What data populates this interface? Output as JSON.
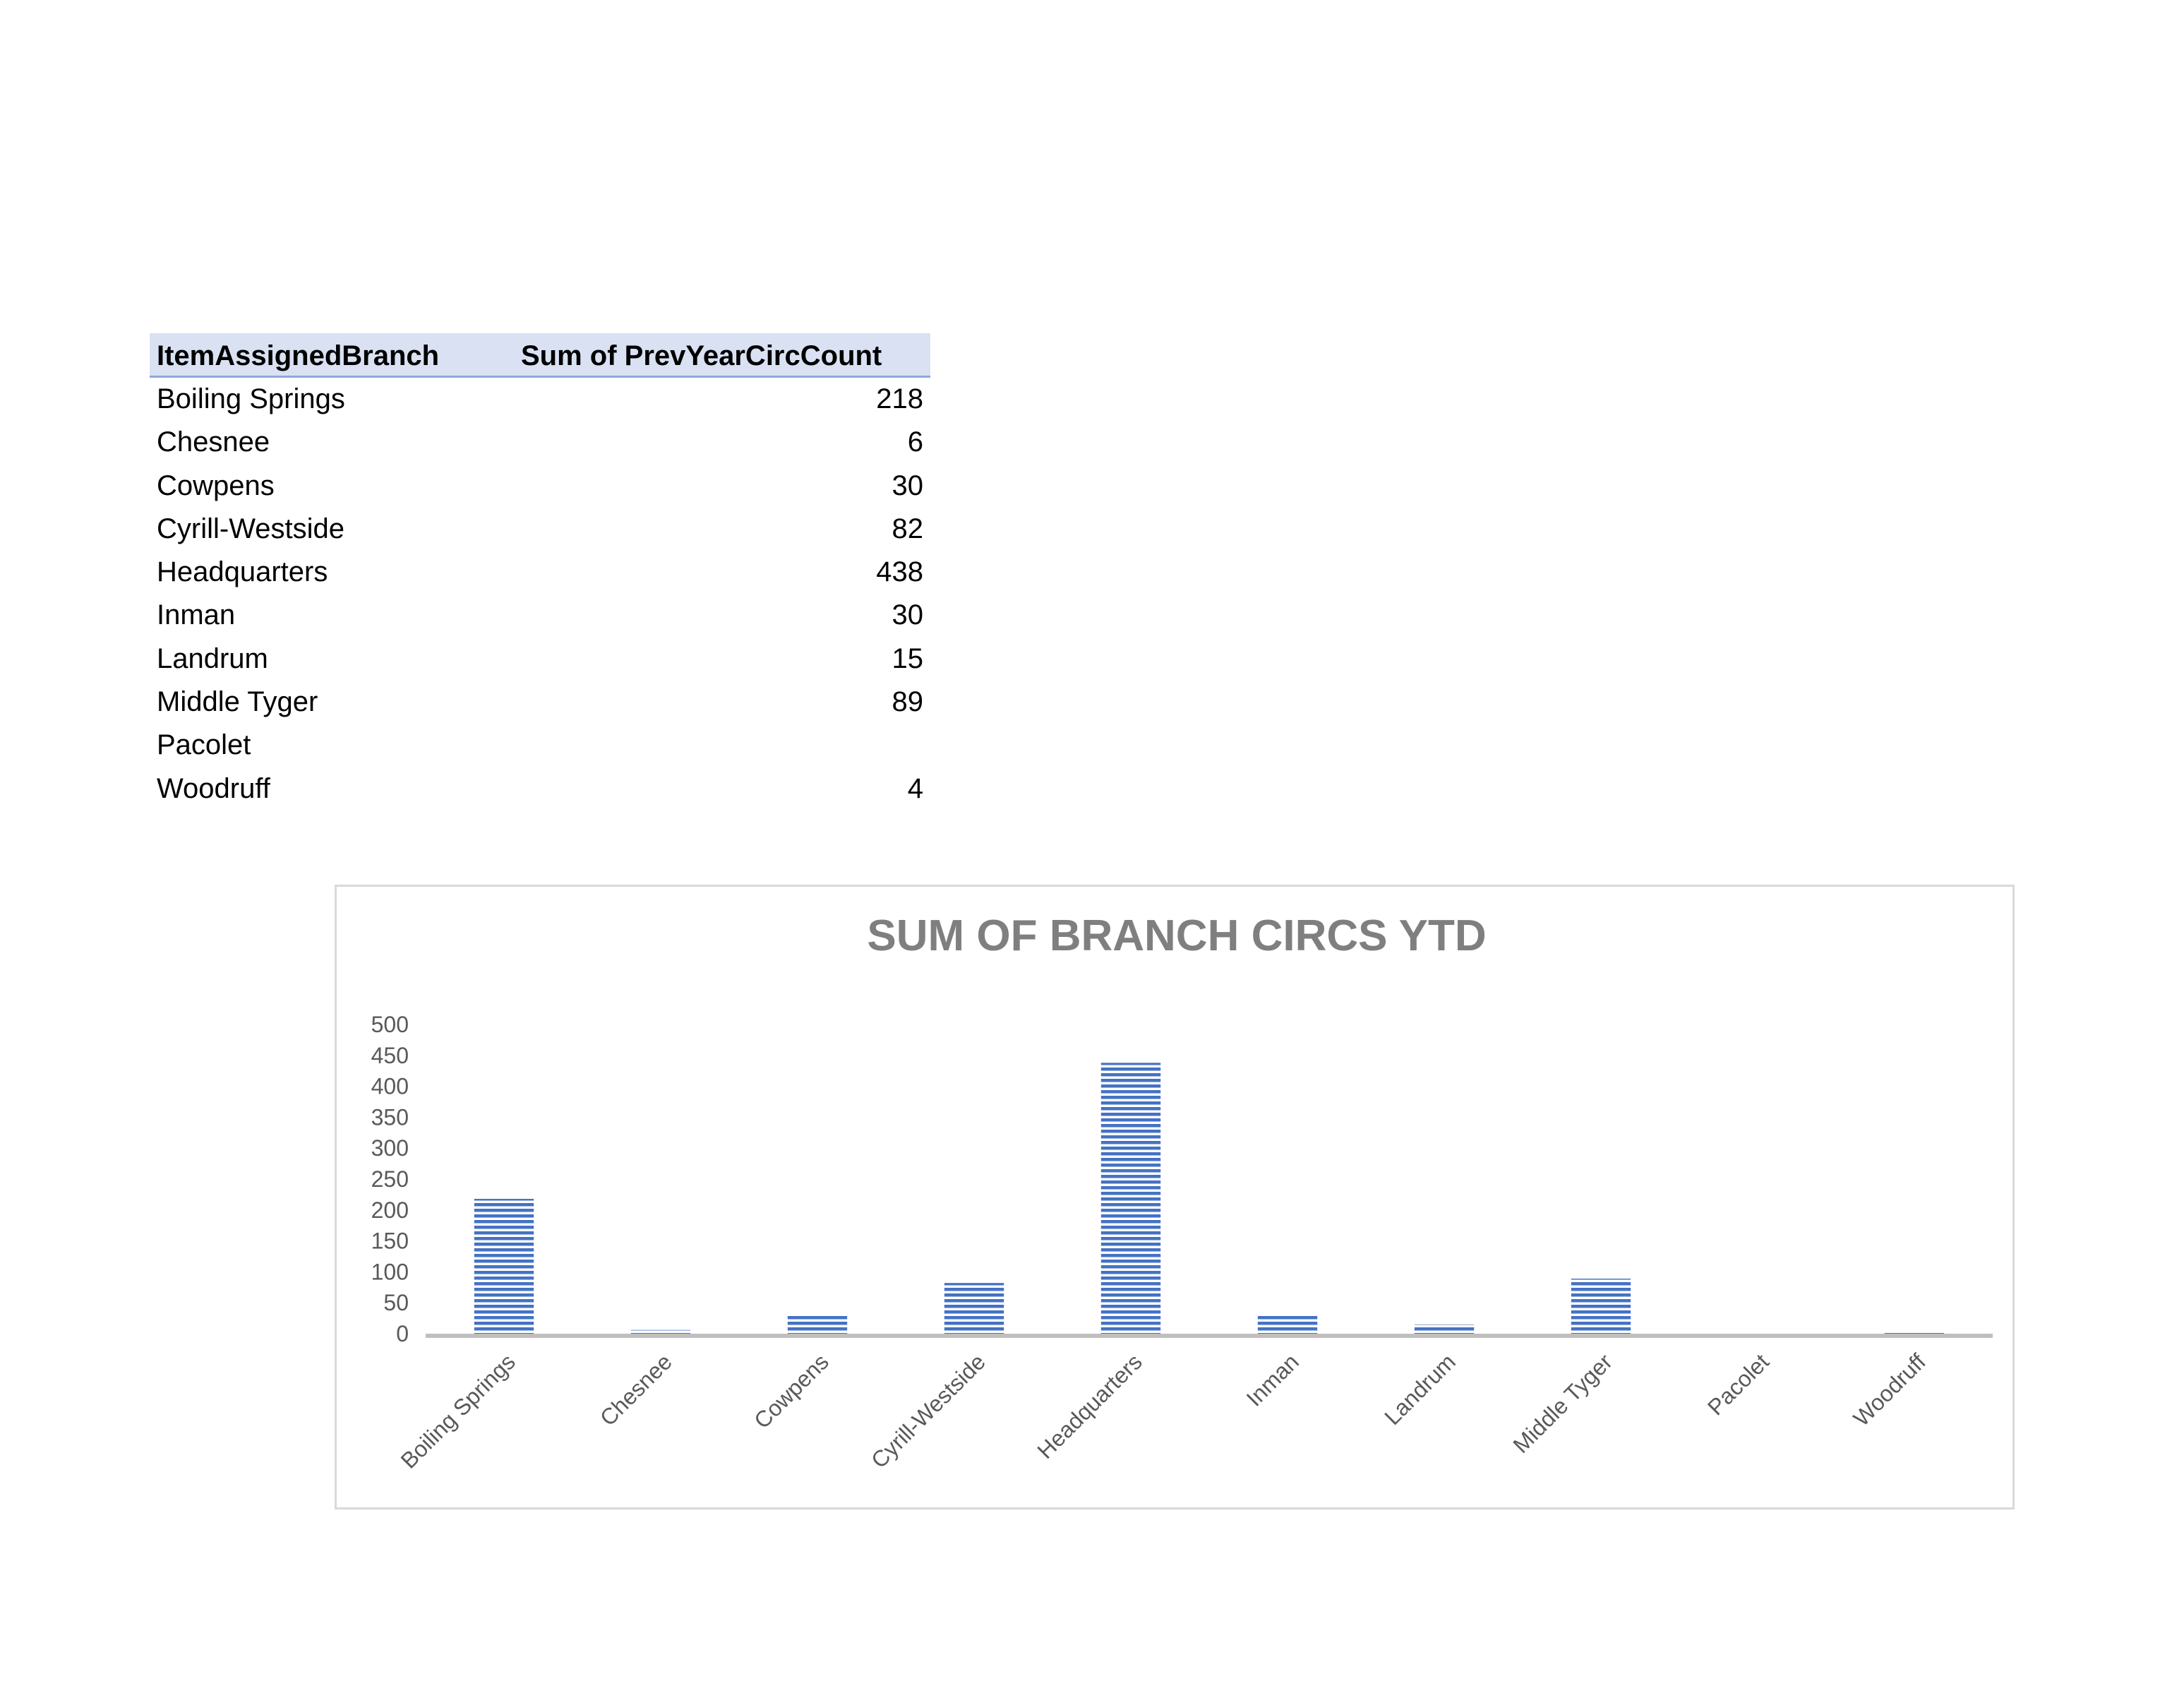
{
  "table": {
    "headers": [
      "ItemAssignedBranch",
      "Sum of PrevYearCircCount"
    ],
    "rows": [
      {
        "branch": "Boiling Springs",
        "value": "218"
      },
      {
        "branch": "Chesnee",
        "value": "6"
      },
      {
        "branch": "Cowpens",
        "value": "30"
      },
      {
        "branch": "Cyrill-Westside",
        "value": "82"
      },
      {
        "branch": "Headquarters",
        "value": "438"
      },
      {
        "branch": "Inman",
        "value": "30"
      },
      {
        "branch": "Landrum",
        "value": "15"
      },
      {
        "branch": "Middle Tyger",
        "value": "89"
      },
      {
        "branch": "Pacolet",
        "value": ""
      },
      {
        "branch": "Woodruff",
        "value": "4"
      }
    ]
  },
  "chart_data": {
    "type": "bar",
    "title": "SUM OF BRANCH CIRCS YTD",
    "categories": [
      "Boiling Springs",
      "Chesnee",
      "Cowpens",
      "Cyrill-Westside",
      "Headquarters",
      "Inman",
      "Landrum",
      "Middle Tyger",
      "Pacolet",
      "Woodruff"
    ],
    "values": [
      218,
      6,
      30,
      82,
      438,
      30,
      15,
      89,
      0,
      4
    ],
    "ylim": [
      0,
      500
    ],
    "yticks": [
      0,
      50,
      100,
      150,
      200,
      250,
      300,
      350,
      400,
      450,
      500
    ],
    "xlabel": "",
    "ylabel": "",
    "grid": false,
    "legend": "none",
    "bar_color": "#4472c4",
    "bar_pattern": "horizontal-stripes"
  }
}
